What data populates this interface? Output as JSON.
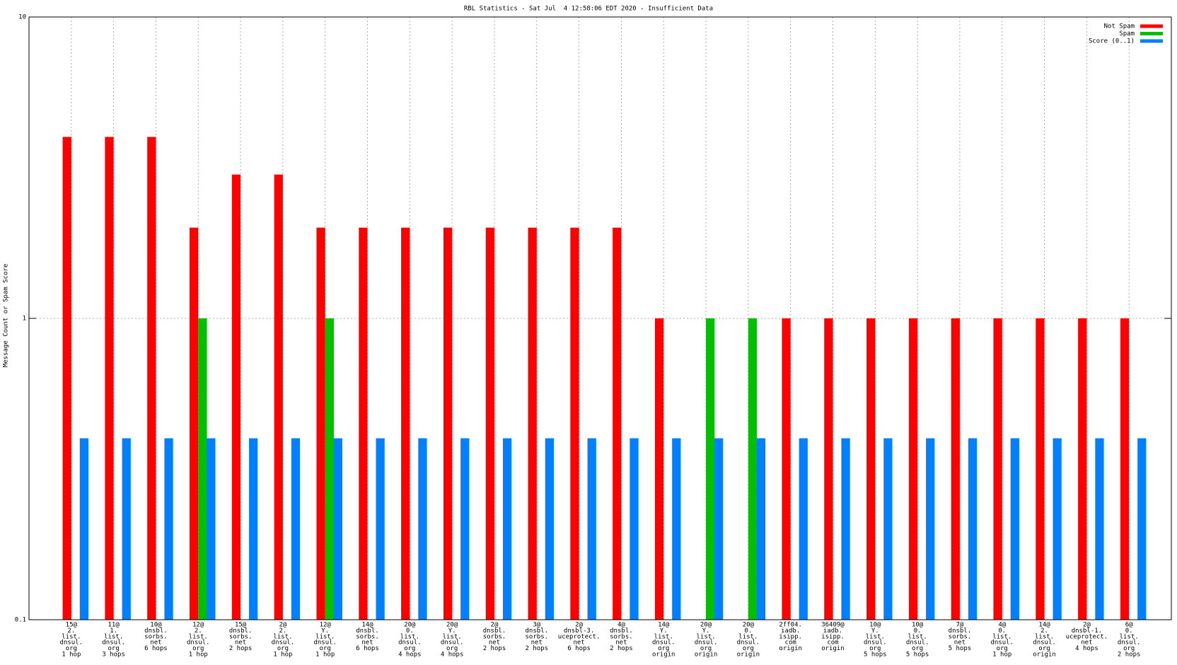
{
  "chart_data": {
    "type": "bar",
    "title": "RBL Statistics - Sat Jul  4 12:58:06 EDT 2020 - Insufficient Data",
    "y_label": "Message Count or Spam Score",
    "log_y": true,
    "grid": true,
    "legend": "top-right",
    "ylim": [
      0.1,
      10
    ],
    "yticks": [
      0.1,
      1,
      10
    ],
    "categories": [
      [
        "15@",
        "2.",
        "list.",
        "dnsul.",
        "org",
        "1 hop"
      ],
      [
        "11@",
        "1.",
        "list.",
        "dnsul.",
        "org",
        "3 hops"
      ],
      [
        "10@",
        "dnsbl.",
        "sorbs.",
        "net",
        "6 hops"
      ],
      [
        "12@",
        "2.",
        "list.",
        "dnsul.",
        "org",
        "1 hop"
      ],
      [
        "15@",
        "dnsbl.",
        "sorbs.",
        "net",
        "2 hops"
      ],
      [
        "2@",
        "2.",
        "list.",
        "dnsul.",
        "org",
        "1 hop"
      ],
      [
        "12@",
        "Y.",
        "list.",
        "dnsul.",
        "org",
        "1 hop"
      ],
      [
        "14@",
        "dnsbl.",
        "sorbs.",
        "net",
        "6 hops"
      ],
      [
        "20@",
        "0.",
        "list.",
        "dnsul.",
        "org",
        "4 hops"
      ],
      [
        "20@",
        "Y.",
        "list.",
        "dnsul.",
        "org",
        "4 hops"
      ],
      [
        "2@",
        "dnsbl.",
        "sorbs.",
        "net",
        "2 hops"
      ],
      [
        "3@",
        "dnsbl.",
        "sorbs.",
        "net",
        "2 hops"
      ],
      [
        "2@",
        "dnsbl-3.",
        "uceprotect.",
        "net",
        "6 hops"
      ],
      [
        "4@",
        "dnsbl.",
        "sorbs.",
        "net",
        "2 hops"
      ],
      [
        "14@",
        "Y.",
        "list.",
        "dnsul.",
        "org",
        "origin"
      ],
      [
        "20@",
        "Y.",
        "list.",
        "dnsul.",
        "org",
        "origin"
      ],
      [
        "20@",
        "0.",
        "list.",
        "dnsul.",
        "org",
        "origin"
      ],
      [
        "2ff04.",
        "iadb.",
        "isipp.",
        "com",
        "origin"
      ],
      [
        "36409@",
        "iadb.",
        "isipp.",
        "com",
        "origin"
      ],
      [
        "10@",
        "Y.",
        "list.",
        "dnsul.",
        "org",
        "5 hops"
      ],
      [
        "10@",
        "0.",
        "list.",
        "dnsul.",
        "org",
        "5 hops"
      ],
      [
        "7@",
        "dnsbl.",
        "sorbs.",
        "net",
        "5 hops"
      ],
      [
        "4@",
        "0.",
        "list.",
        "dnsul.",
        "org",
        "1 hop"
      ],
      [
        "14@",
        "2.",
        "list.",
        "dnsul.",
        "org",
        "origin"
      ],
      [
        "2@",
        "dnsbl-1.",
        "uceprotect.",
        "net",
        "4 hops"
      ],
      [
        "6@",
        "0.",
        "list.",
        "dnsul.",
        "org",
        "2 hops"
      ]
    ],
    "series": [
      {
        "name": "Not Spam",
        "color": "#ff0000",
        "values": [
          4,
          4,
          4,
          2,
          3,
          3,
          2,
          2,
          2,
          2,
          2,
          2,
          2,
          2,
          1,
          null,
          null,
          1,
          1,
          1,
          1,
          1,
          1,
          1,
          1,
          1
        ]
      },
      {
        "name": "Spam",
        "color": "#00c000",
        "values": [
          null,
          null,
          null,
          1,
          null,
          null,
          1,
          null,
          null,
          null,
          null,
          null,
          null,
          null,
          null,
          1,
          1,
          null,
          null,
          null,
          null,
          null,
          null,
          null,
          null,
          null
        ]
      },
      {
        "name": "Score (0..1)",
        "color": "#0080ff",
        "values": [
          0.4,
          0.4,
          0.4,
          0.4,
          0.4,
          0.4,
          0.4,
          0.4,
          0.4,
          0.4,
          0.4,
          0.4,
          0.4,
          0.4,
          0.4,
          0.4,
          0.4,
          0.4,
          0.4,
          0.4,
          0.4,
          0.4,
          0.4,
          0.4,
          0.4,
          0.4
        ]
      }
    ]
  }
}
